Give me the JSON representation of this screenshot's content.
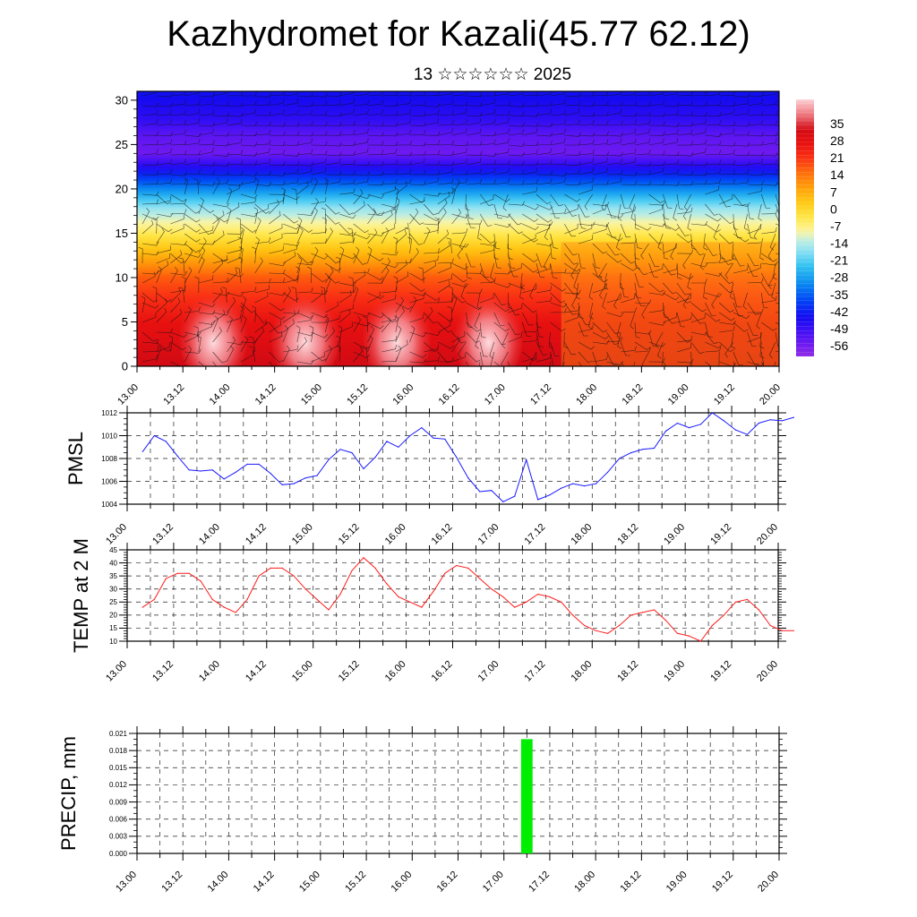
{
  "title": "Kazhydromet for Kazali(45.77 62.12)",
  "subtitle": "13 ☆☆☆☆☆☆ 2025",
  "colors": {
    "pmsl_line": "#1a1aff",
    "temp_line": "#ff1a1a",
    "precip_bar": "#00ee00",
    "frame": "#000000"
  },
  "time_ticks": [
    "13.00",
    "13.12",
    "14.00",
    "14.12",
    "15.00",
    "15.12",
    "16.00",
    "16.12",
    "17.00",
    "17.12",
    "18.00",
    "18.12",
    "19.00",
    "19.12",
    "20.00"
  ],
  "chart_data": [
    {
      "type": "heatmap",
      "name": "vertical-section",
      "title": "",
      "x_ticks": [
        "13.00",
        "13.12",
        "14.00",
        "14.12",
        "15.00",
        "15.12",
        "16.00",
        "16.12",
        "17.00",
        "17.12",
        "18.00",
        "18.12",
        "19.00",
        "19.12",
        "20.00"
      ],
      "y_ticks": [
        "0",
        "5",
        "10",
        "15",
        "20",
        "25",
        "30"
      ],
      "xlim": [
        0,
        168
      ],
      "ylim": [
        0,
        31
      ],
      "colorbar_labels": [
        "35",
        "28",
        "21",
        "14",
        "7",
        "0",
        "-7",
        "-14",
        "-21",
        "-28",
        "-35",
        "-42",
        "-49",
        "-56"
      ],
      "colorbar_range": [
        -63,
        42
      ],
      "temperature_profile": [
        {
          "level": 0,
          "value": 30
        },
        {
          "level": 5,
          "value": 24
        },
        {
          "level": 10,
          "value": 14
        },
        {
          "level": 15,
          "value": -7
        },
        {
          "level": 18,
          "value": -20
        },
        {
          "level": 21,
          "value": -40
        },
        {
          "level": 24,
          "value": -58
        },
        {
          "level": 26,
          "value": -56
        },
        {
          "level": 28,
          "value": -50
        },
        {
          "level": 31,
          "value": -46
        }
      ],
      "wind_barbs": true
    },
    {
      "type": "line",
      "name": "pmsl",
      "ylabel": "PMSL",
      "y_ticks": [
        "1004",
        "1006",
        "1008",
        "1010",
        "1012"
      ],
      "ylim": [
        1004,
        1012
      ],
      "x_ticks": [
        "13.00",
        "13.12",
        "14.00",
        "14.12",
        "15.00",
        "15.12",
        "16.00",
        "16.12",
        "17.00",
        "17.12",
        "18.00",
        "18.12",
        "19.00",
        "19.12",
        "20.00"
      ],
      "xlim": [
        0,
        168
      ],
      "grid": true,
      "series": [
        {
          "x": [
            0,
            3,
            6,
            9,
            12,
            15,
            18,
            21,
            24,
            27,
            30,
            33,
            36,
            39,
            42,
            45,
            48,
            51,
            54,
            57,
            60,
            63,
            66,
            69,
            72,
            75,
            78,
            81,
            84,
            87,
            90,
            93,
            96,
            99,
            102,
            105,
            108,
            111,
            114,
            117,
            120,
            123,
            126,
            129,
            132,
            135,
            138,
            141,
            144,
            147,
            150,
            153,
            156,
            159,
            162,
            165,
            168
          ],
          "values": [
            1008.6,
            1010.0,
            1009.5,
            1008.2,
            1007.0,
            1006.9,
            1007.0,
            1006.2,
            1006.8,
            1007.5,
            1007.5,
            1006.7,
            1005.7,
            1005.8,
            1006.3,
            1006.5,
            1007.9,
            1008.8,
            1008.5,
            1007.1,
            1008.1,
            1009.5,
            1009.0,
            1010.0,
            1010.7,
            1009.8,
            1009.7,
            1008.1,
            1006.3,
            1005.1,
            1005.2,
            1004.2,
            1004.7,
            1007.9,
            1004.4,
            1004.8,
            1005.4,
            1005.8,
            1005.6,
            1005.8,
            1006.8,
            1008.0,
            1008.5,
            1008.8,
            1008.9,
            1010.4,
            1011.1,
            1010.7,
            1011.0,
            1012.0,
            1011.3,
            1010.5,
            1010.1,
            1011.1,
            1011.4,
            1011.3,
            1011.6
          ]
        }
      ]
    },
    {
      "type": "line",
      "name": "temp-2m",
      "ylabel": "TEMP at 2 M",
      "y_ticks": [
        "10",
        "15",
        "20",
        "25",
        "30",
        "35",
        "40",
        "45"
      ],
      "ylim": [
        10,
        45
      ],
      "x_ticks": [
        "13.00",
        "13.12",
        "14.00",
        "14.12",
        "15.00",
        "15.12",
        "16.00",
        "16.12",
        "17.00",
        "17.12",
        "18.00",
        "18.12",
        "19.00",
        "19.12",
        "20.00"
      ],
      "xlim": [
        0,
        168
      ],
      "grid": true,
      "series": [
        {
          "x": [
            0,
            3,
            6,
            9,
            12,
            15,
            18,
            21,
            24,
            27,
            30,
            33,
            36,
            39,
            42,
            45,
            48,
            51,
            54,
            57,
            60,
            63,
            66,
            69,
            72,
            75,
            78,
            81,
            84,
            87,
            90,
            93,
            96,
            99,
            102,
            105,
            108,
            111,
            114,
            117,
            120,
            123,
            126,
            129,
            132,
            135,
            138,
            141,
            144,
            147,
            150,
            153,
            156,
            159,
            162,
            165,
            168
          ],
          "values": [
            23,
            26,
            34,
            36,
            36,
            33,
            26,
            23,
            21,
            26,
            35,
            38,
            38,
            35,
            30,
            26,
            22,
            28,
            37,
            42,
            38,
            32,
            27,
            25,
            23,
            29,
            36,
            39,
            38,
            34,
            30,
            27,
            23,
            25,
            28,
            27,
            25,
            20,
            16,
            14,
            13,
            16,
            20,
            21,
            22,
            18,
            13,
            12,
            10,
            16,
            20,
            25,
            26,
            22,
            16,
            14,
            14
          ]
        }
      ]
    },
    {
      "type": "bar",
      "name": "precip",
      "ylabel": "PRECIP, mm",
      "y_ticks": [
        "0.000",
        "0.003",
        "0.006",
        "0.009",
        "0.012",
        "0.015",
        "0.018",
        "0.021"
      ],
      "ylim": [
        0,
        0.021
      ],
      "x_ticks": [
        "13.00",
        "13.12",
        "14.00",
        "14.12",
        "15.00",
        "15.12",
        "16.00",
        "16.12",
        "17.00",
        "17.12",
        "18.00",
        "18.12",
        "19.00",
        "19.12",
        "20.00"
      ],
      "xlim": [
        0,
        168
      ],
      "grid": true,
      "bars": [
        {
          "x_start": 100.5,
          "x_end": 103.5,
          "value": 0.02
        }
      ]
    }
  ]
}
